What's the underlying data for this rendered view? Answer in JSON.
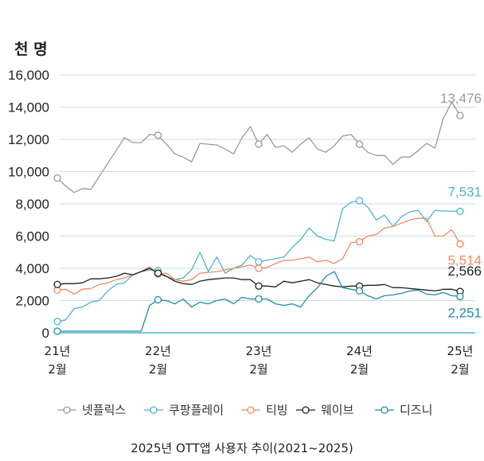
{
  "chart_data": {
    "type": "line",
    "title": "2025년 OTT앱 사용자 추이(2021~2025)",
    "unit_label": "천 명",
    "ylim": [
      0,
      16000
    ],
    "yticks": [
      0,
      2000,
      4000,
      6000,
      8000,
      10000,
      12000,
      14000,
      16000
    ],
    "ytick_labels": [
      "0",
      "2,000",
      "4,000",
      "6,000",
      "8,000",
      "10,000",
      "12,000",
      "14,000",
      "16,000"
    ],
    "x_start_index": 0,
    "x_end_index": 48,
    "xticks": [
      {
        "index": 0,
        "year": "21년",
        "month": "2월"
      },
      {
        "index": 12,
        "year": "22년",
        "month": "2월"
      },
      {
        "index": 24,
        "year": "23년",
        "month": "2월"
      },
      {
        "index": 36,
        "year": "24년",
        "month": "2월"
      },
      {
        "index": 48,
        "year": "25년",
        "month": "2월"
      }
    ],
    "marker_indices": [
      0,
      12,
      24,
      36,
      48
    ],
    "series": [
      {
        "name": "넷플릭스",
        "color": "#9a9a9a",
        "end_label": "13,476",
        "values": [
          9600,
          9100,
          8700,
          8950,
          8900,
          9700,
          10500,
          11300,
          12100,
          11800,
          11800,
          12300,
          12250,
          11700,
          11100,
          10900,
          10600,
          11750,
          11700,
          11650,
          11400,
          11100,
          12100,
          12800,
          11700,
          12300,
          11500,
          11600,
          11200,
          11700,
          12100,
          11400,
          11200,
          11600,
          12200,
          12300,
          11700,
          11200,
          11000,
          11000,
          10450,
          10900,
          10900,
          11300,
          11750,
          11450,
          13300,
          14300,
          13476
        ]
      },
      {
        "name": "쿠팡플레이",
        "color": "#4fb3cf",
        "end_label": "7,531",
        "values": [
          700,
          800,
          1500,
          1600,
          1900,
          2000,
          2600,
          3000,
          3100,
          3600,
          3800,
          3900,
          3850,
          3500,
          3300,
          3400,
          3900,
          5000,
          3800,
          4700,
          3700,
          4000,
          4200,
          4800,
          4400,
          4500,
          4600,
          4700,
          5300,
          5800,
          6500,
          6000,
          5800,
          5700,
          7700,
          8100,
          8200,
          7800,
          7000,
          7300,
          6600,
          7200,
          7500,
          7600,
          6900,
          7600,
          7550,
          7550,
          7531
        ]
      },
      {
        "name": "티빙",
        "color": "#f28a5e",
        "end_label": "5,514",
        "values": [
          2650,
          2700,
          2400,
          2700,
          2750,
          3000,
          3100,
          3300,
          3400,
          3600,
          3800,
          4100,
          3650,
          3700,
          3300,
          3200,
          3300,
          3700,
          3750,
          3800,
          3900,
          4000,
          4100,
          4200,
          4000,
          4050,
          4300,
          4500,
          4500,
          4600,
          4700,
          4400,
          4500,
          4300,
          4600,
          5600,
          5650,
          6000,
          6100,
          6500,
          6600,
          6800,
          7000,
          7100,
          7100,
          6000,
          6000,
          6400,
          5514
        ]
      },
      {
        "name": "웨이브",
        "color": "#222222",
        "end_label": "2,566",
        "values": [
          3000,
          3050,
          3050,
          3100,
          3350,
          3350,
          3400,
          3500,
          3700,
          3600,
          3800,
          4000,
          3700,
          3500,
          3200,
          3050,
          3000,
          3200,
          3300,
          3350,
          3400,
          3400,
          3300,
          3300,
          2900,
          2900,
          2850,
          3200,
          3100,
          3200,
          3300,
          3100,
          3000,
          2900,
          2850,
          2900,
          2900,
          2950,
          2950,
          3000,
          2800,
          2800,
          2750,
          2700,
          2650,
          2600,
          2700,
          2700,
          2566
        ]
      },
      {
        "name": "디즈니",
        "color": "#1f8ea3",
        "end_label": "2,251",
        "values": [
          100,
          100,
          100,
          100,
          100,
          100,
          100,
          100,
          100,
          100,
          100,
          1700,
          2050,
          2000,
          1800,
          2100,
          1600,
          1900,
          1800,
          2000,
          2100,
          1800,
          2200,
          2100,
          2100,
          2100,
          1800,
          1700,
          1800,
          1600,
          2300,
          2800,
          3500,
          3800,
          2800,
          2700,
          2600,
          2300,
          2100,
          2300,
          2350,
          2450,
          2600,
          2650,
          2400,
          2350,
          2500,
          2300,
          2251
        ]
      }
    ]
  }
}
